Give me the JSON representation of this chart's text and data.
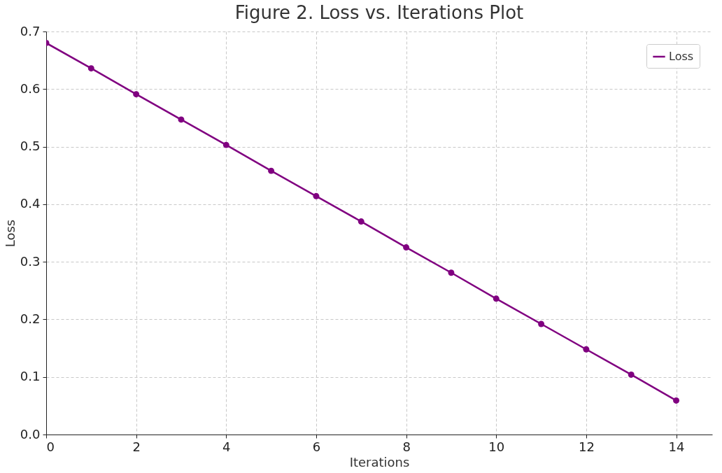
{
  "chart_data": {
    "type": "line",
    "title": "Figure 2. Loss vs. Iterations Plot",
    "xlabel": "Iterations",
    "ylabel": "Loss",
    "x": [
      0,
      1,
      2,
      3,
      4,
      5,
      6,
      7,
      8,
      9,
      10,
      11,
      12,
      13,
      14
    ],
    "series": [
      {
        "name": "Loss",
        "color": "#800080",
        "values": [
          0.68,
          0.636,
          0.591,
          0.547,
          0.503,
          0.458,
          0.414,
          0.37,
          0.325,
          0.281,
          0.236,
          0.192,
          0.148,
          0.104,
          0.059
        ]
      }
    ],
    "xlim": [
      0,
      14.8
    ],
    "xticks": [
      0,
      2,
      4,
      6,
      8,
      10,
      12,
      14
    ],
    "ylim": [
      0,
      0.7
    ],
    "yticks": [
      {
        "value": 0,
        "label": "0.0"
      },
      0.1,
      0.2,
      0.3,
      0.4,
      0.5,
      0.6,
      0.7
    ],
    "grid": true,
    "legend": "top right",
    "marker": "circle",
    "line_style": "solid"
  }
}
